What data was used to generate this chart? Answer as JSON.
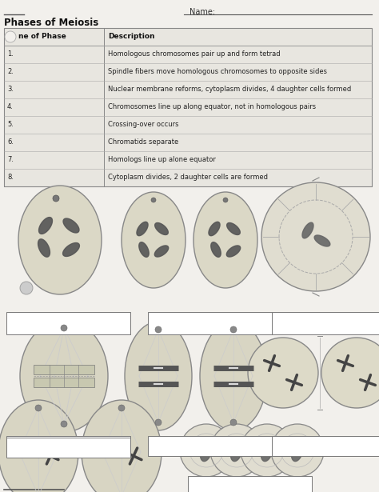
{
  "title": "Phases of Meiosis",
  "name_label": "Name:",
  "bg_color": "#f2f0ec",
  "table_bg": "#e8e6e0",
  "table_header": [
    "ne of Phase",
    "Description"
  ],
  "table_rows": [
    [
      "1.",
      "Homologous chromosomes pair up and form tetrad"
    ],
    [
      "2.",
      "Spindle fibers move homologous chromosomes to opposite sides"
    ],
    [
      "3.",
      "Nuclear membrane reforms, cytoplasm divides, 4 daughter cells formed"
    ],
    [
      "4.",
      "Chromosomes line up along equator, not in homologous pairs"
    ],
    [
      "5.",
      "Crossing-over occurs"
    ],
    [
      "6.",
      "Chromatids separate"
    ],
    [
      "7.",
      "Homologs line up alone equator"
    ],
    [
      "8.",
      "Cytoplasm divides, 2 daughter cells are formed"
    ]
  ]
}
